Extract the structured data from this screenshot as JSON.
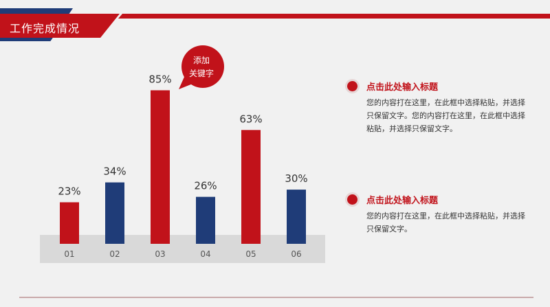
{
  "header": {
    "title": "工作完成情况"
  },
  "bubble": {
    "line1": "添加",
    "line2": "关键字"
  },
  "items": [
    {
      "title": "点击此处输入标题",
      "body": "您的内容打在这里，在此框中选择粘贴，并选择只保留文字。您的内容打在这里，在此框中选择粘贴，并选择只保留文字。"
    },
    {
      "title": "点击此处输入标题",
      "body": "您的内容打在这里，在此框中选择粘贴，并选择只保留文字。"
    }
  ],
  "colors": {
    "red": "#c1121a",
    "navy": "#1f3c78",
    "base": "#d9d9d9"
  },
  "chart_data": {
    "type": "bar",
    "categories": [
      "01",
      "02",
      "03",
      "04",
      "05",
      "06"
    ],
    "values": [
      23,
      34,
      85,
      26,
      63,
      30
    ],
    "value_labels": [
      "23%",
      "34%",
      "85%",
      "26%",
      "63%",
      "30%"
    ],
    "bar_colors": [
      "#c1121a",
      "#1f3c78",
      "#c1121a",
      "#1f3c78",
      "#c1121a",
      "#1f3c78"
    ],
    "ylim": [
      0,
      100
    ],
    "grid": false,
    "title": "",
    "xlabel": "",
    "ylabel": ""
  }
}
